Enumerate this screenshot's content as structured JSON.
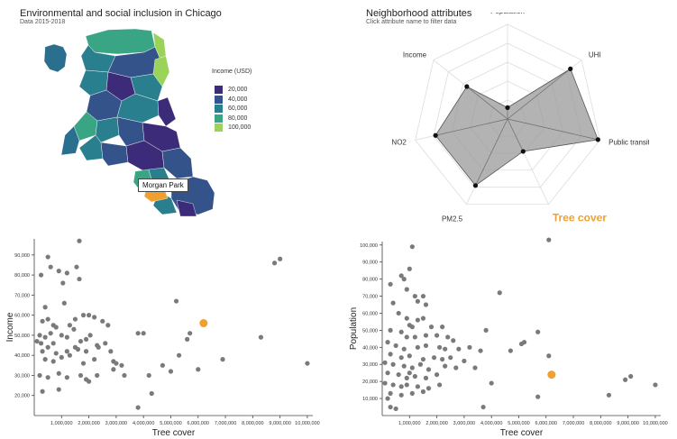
{
  "map_panel": {
    "title": "Environmental and social inclusion in Chicago",
    "subtitle": "Data 2015-2018",
    "legend_title": "Income (USD)",
    "legend": [
      {
        "label": "20,000",
        "color": "#3b2b78"
      },
      {
        "label": "40,000",
        "color": "#35538b"
      },
      {
        "label": "60,000",
        "color": "#2a7f8e"
      },
      {
        "label": "80,000",
        "color": "#3aa585"
      },
      {
        "label": "100,000",
        "color": "#9bd35a"
      }
    ],
    "tooltip": "Morgan Park",
    "highlight_color": "#f0a030"
  },
  "radar_panel": {
    "title": "Neighborhood attributes",
    "subtitle": "Click attribute name to filter data"
  },
  "chart_data": [
    {
      "type": "radar",
      "axes": [
        "Population",
        "UHI",
        "Public transit",
        "Tree cover",
        "PM2.5",
        "NO2",
        "Income"
      ],
      "selected_axis": "Tree cover",
      "selected_color": "#f0a030",
      "values": [
        0.12,
        0.85,
        0.98,
        0.38,
        0.78,
        0.78,
        0.55
      ],
      "range": [
        0,
        1
      ]
    },
    {
      "type": "scatter",
      "xlabel": "Tree cover",
      "ylabel": "Income",
      "xlim": [
        0,
        10200000
      ],
      "ylim": [
        10000,
        98000
      ],
      "xticks": [
        1000000,
        2000000,
        3000000,
        4000000,
        5000000,
        6000000,
        7000000,
        8000000,
        9000000,
        10000000
      ],
      "xtick_labels": [
        "1,000,000",
        "2,000,000",
        "3,000,000",
        "4,000,000",
        "5,000,000",
        "6,000,000",
        "7,000,000",
        "8,000,000",
        "9,000,000",
        "10,000,000"
      ],
      "yticks": [
        20000,
        30000,
        40000,
        50000,
        60000,
        70000,
        80000,
        90000
      ],
      "ytick_labels": [
        "20,000",
        "30,000",
        "40,000",
        "50,000",
        "60,000",
        "70,000",
        "80,000",
        "90,000"
      ],
      "highlight": {
        "x": 6200000,
        "y": 56000,
        "color": "#f0a030"
      },
      "points": [
        [
          1650000,
          97000
        ],
        [
          500000,
          89000
        ],
        [
          600000,
          84000
        ],
        [
          1550000,
          84000
        ],
        [
          250000,
          80000
        ],
        [
          900000,
          82000
        ],
        [
          1200000,
          81000
        ],
        [
          1050000,
          76000
        ],
        [
          1650000,
          78000
        ],
        [
          9000000,
          88000
        ],
        [
          8800000,
          86000
        ],
        [
          1100000,
          66000
        ],
        [
          400000,
          64000
        ],
        [
          500000,
          58000
        ],
        [
          300000,
          57000
        ],
        [
          1800000,
          60000
        ],
        [
          2000000,
          60000
        ],
        [
          2200000,
          59000
        ],
        [
          5200000,
          67000
        ],
        [
          700000,
          55000
        ],
        [
          800000,
          54000
        ],
        [
          1300000,
          55000
        ],
        [
          1500000,
          58000
        ],
        [
          2500000,
          57000
        ],
        [
          2700000,
          55000
        ],
        [
          3800000,
          51000
        ],
        [
          4000000,
          51000
        ],
        [
          5700000,
          51000
        ],
        [
          200000,
          50000
        ],
        [
          400000,
          49000
        ],
        [
          600000,
          51000
        ],
        [
          1000000,
          50000
        ],
        [
          1200000,
          49000
        ],
        [
          1450000,
          53000
        ],
        [
          1700000,
          47000
        ],
        [
          2050000,
          50000
        ],
        [
          1900000,
          48000
        ],
        [
          2350000,
          44000
        ],
        [
          2600000,
          46000
        ],
        [
          5600000,
          48000
        ],
        [
          8300000,
          49000
        ],
        [
          100000,
          47000
        ],
        [
          250000,
          46000
        ],
        [
          500000,
          44000
        ],
        [
          700000,
          46000
        ],
        [
          300000,
          42000
        ],
        [
          800000,
          41000
        ],
        [
          1200000,
          42000
        ],
        [
          1500000,
          44000
        ],
        [
          1600000,
          43000
        ],
        [
          1900000,
          42000
        ],
        [
          2300000,
          45000
        ],
        [
          2800000,
          42000
        ],
        [
          5300000,
          40000
        ],
        [
          6900000,
          38000
        ],
        [
          400000,
          38000
        ],
        [
          700000,
          37000
        ],
        [
          1000000,
          39000
        ],
        [
          1300000,
          40000
        ],
        [
          1800000,
          36000
        ],
        [
          2200000,
          38000
        ],
        [
          2900000,
          37000
        ],
        [
          3200000,
          35000
        ],
        [
          3000000,
          36000
        ],
        [
          4700000,
          35000
        ],
        [
          6000000,
          33000
        ],
        [
          10000000,
          36000
        ],
        [
          200000,
          30000
        ],
        [
          500000,
          29000
        ],
        [
          900000,
          31000
        ],
        [
          1200000,
          29000
        ],
        [
          1700000,
          30000
        ],
        [
          1900000,
          28000
        ],
        [
          2000000,
          27000
        ],
        [
          2300000,
          30000
        ],
        [
          2900000,
          33000
        ],
        [
          3300000,
          30000
        ],
        [
          4200000,
          30000
        ],
        [
          5000000,
          32000
        ],
        [
          300000,
          22000
        ],
        [
          900000,
          23000
        ],
        [
          4300000,
          21000
        ],
        [
          3800000,
          14000
        ]
      ]
    },
    {
      "type": "scatter",
      "xlabel": "Tree cover",
      "ylabel": "Population",
      "xlim": [
        0,
        10200000
      ],
      "ylim": [
        0,
        102000
      ],
      "xticks": [
        1000000,
        2000000,
        3000000,
        4000000,
        5000000,
        6000000,
        7000000,
        8000000,
        9000000,
        10000000
      ],
      "xtick_labels": [
        "1,000,000",
        "2,000,000",
        "3,000,000",
        "4,000,000",
        "5,000,000",
        "6,000,000",
        "7,000,000",
        "8,000,000",
        "9,000,000",
        "10,000,000"
      ],
      "yticks": [
        10000,
        20000,
        30000,
        40000,
        50000,
        60000,
        70000,
        80000,
        90000,
        100000
      ],
      "ytick_labels": [
        "10,000",
        "20,000",
        "30,000",
        "40,000",
        "50,000",
        "60,000",
        "70,000",
        "80,000",
        "90,000",
        "100,000"
      ],
      "highlight": {
        "x": 6200000,
        "y": 24000,
        "color": "#f0a030"
      },
      "points": [
        [
          6100000,
          103000
        ],
        [
          1100000,
          99000
        ],
        [
          1000000,
          86000
        ],
        [
          700000,
          82000
        ],
        [
          800000,
          80000
        ],
        [
          300000,
          77000
        ],
        [
          900000,
          74000
        ],
        [
          1200000,
          70000
        ],
        [
          1500000,
          70000
        ],
        [
          4300000,
          72000
        ],
        [
          1300000,
          67000
        ],
        [
          1600000,
          65000
        ],
        [
          400000,
          66000
        ],
        [
          600000,
          60000
        ],
        [
          900000,
          57000
        ],
        [
          1000000,
          53000
        ],
        [
          1300000,
          56000
        ],
        [
          1500000,
          57000
        ],
        [
          2200000,
          52000
        ],
        [
          1800000,
          52000
        ],
        [
          1100000,
          52000
        ],
        [
          700000,
          49000
        ],
        [
          300000,
          50000
        ],
        [
          900000,
          46000
        ],
        [
          1200000,
          46000
        ],
        [
          1600000,
          47000
        ],
        [
          2000000,
          47000
        ],
        [
          2400000,
          46000
        ],
        [
          2600000,
          44000
        ],
        [
          3800000,
          50000
        ],
        [
          5700000,
          49000
        ],
        [
          5100000,
          42000
        ],
        [
          5200000,
          43000
        ],
        [
          200000,
          43000
        ],
        [
          500000,
          41000
        ],
        [
          800000,
          39000
        ],
        [
          1300000,
          40000
        ],
        [
          1600000,
          41000
        ],
        [
          2100000,
          40000
        ],
        [
          2300000,
          39000
        ],
        [
          2800000,
          39000
        ],
        [
          3200000,
          40000
        ],
        [
          3600000,
          38000
        ],
        [
          4700000,
          38000
        ],
        [
          6100000,
          35000
        ],
        [
          300000,
          36000
        ],
        [
          700000,
          34000
        ],
        [
          1000000,
          35000
        ],
        [
          1500000,
          33000
        ],
        [
          1900000,
          34000
        ],
        [
          2200000,
          33000
        ],
        [
          2500000,
          34000
        ],
        [
          3000000,
          32000
        ],
        [
          100000,
          31000
        ],
        [
          400000,
          30000
        ],
        [
          800000,
          29000
        ],
        [
          1100000,
          28000
        ],
        [
          1400000,
          30000
        ],
        [
          1700000,
          27000
        ],
        [
          2300000,
          29000
        ],
        [
          2700000,
          28000
        ],
        [
          200000,
          25000
        ],
        [
          600000,
          24000
        ],
        [
          900000,
          22000
        ],
        [
          1000000,
          25000
        ],
        [
          1200000,
          23000
        ],
        [
          1600000,
          22000
        ],
        [
          2000000,
          24000
        ],
        [
          3400000,
          28000
        ],
        [
          9100000,
          23000
        ],
        [
          8900000,
          21000
        ],
        [
          10000000,
          18000
        ],
        [
          100000,
          19000
        ],
        [
          400000,
          18000
        ],
        [
          700000,
          17000
        ],
        [
          900000,
          18000
        ],
        [
          1300000,
          17000
        ],
        [
          1700000,
          16000
        ],
        [
          2100000,
          18000
        ],
        [
          4000000,
          19000
        ],
        [
          300000,
          13000
        ],
        [
          700000,
          12000
        ],
        [
          1100000,
          13000
        ],
        [
          1500000,
          14000
        ],
        [
          8300000,
          12000
        ],
        [
          200000,
          10000
        ],
        [
          5700000,
          11000
        ],
        [
          300000,
          5000
        ],
        [
          500000,
          4000
        ],
        [
          3700000,
          5000
        ]
      ]
    }
  ]
}
